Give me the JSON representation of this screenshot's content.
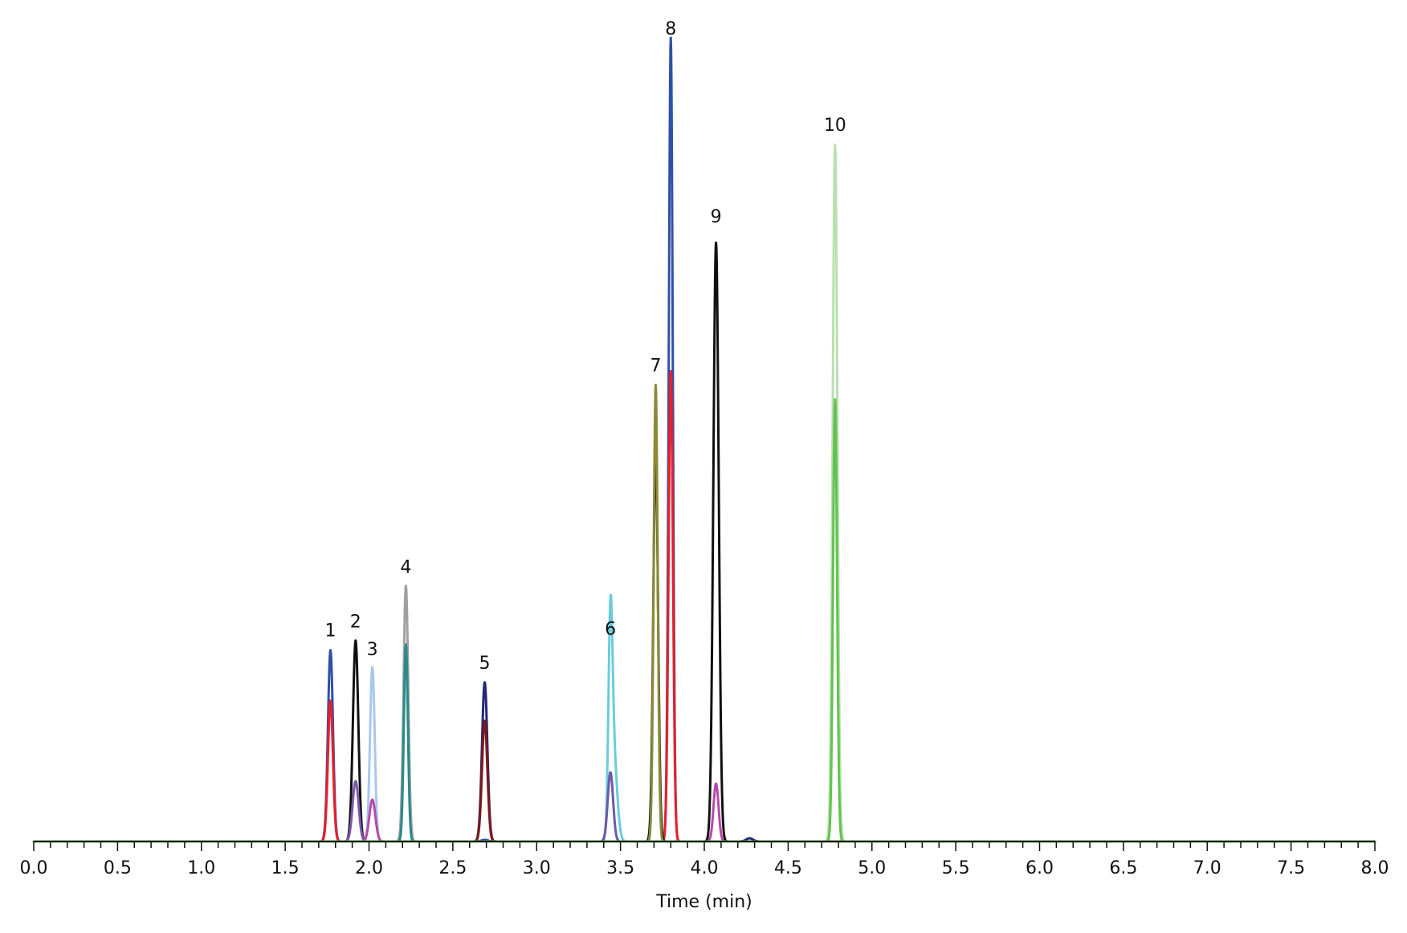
{
  "chart_data": {
    "type": "line",
    "title": "",
    "xlabel": "Time (min)",
    "ylabel": "",
    "xlim": [
      0,
      8
    ],
    "ylim": [
      0,
      100
    ],
    "grid": false,
    "x_ticks": [
      "0.0",
      "0.5",
      "1.0",
      "1.5",
      "2.0",
      "2.5",
      "3.0",
      "3.5",
      "4.0",
      "4.5",
      "5.0",
      "5.5",
      "6.0",
      "6.5",
      "7.0",
      "7.5",
      "8.0"
    ],
    "annotations": [
      {
        "label": "1",
        "x": 1.77,
        "y": 25.1
      },
      {
        "label": "2",
        "x": 1.92,
        "y": 26.2
      },
      {
        "label": "3",
        "x": 2.02,
        "y": 22.8
      },
      {
        "label": "4",
        "x": 2.22,
        "y": 33.0
      },
      {
        "label": "5",
        "x": 2.69,
        "y": 21.1
      },
      {
        "label": "6",
        "x": 3.44,
        "y": 25.3
      },
      {
        "label": "7",
        "x": 3.71,
        "y": 58.1
      },
      {
        "label": "8",
        "x": 3.8,
        "y": 100.0
      },
      {
        "label": "9",
        "x": 4.07,
        "y": 76.6
      },
      {
        "label": "10",
        "x": 4.78,
        "y": 88.0
      }
    ],
    "series": [
      {
        "color": "#3050a8",
        "peaks": [
          {
            "x": 1.77,
            "height": 23.8,
            "width": 0.015
          },
          {
            "x": 3.8,
            "height": 100.0,
            "width": 0.012
          },
          {
            "x": 2.69,
            "height": 0.2,
            "width": 0.02
          }
        ]
      },
      {
        "color": "#e8202a",
        "peaks": [
          {
            "x": 1.77,
            "height": 17.5,
            "width": 0.015
          },
          {
            "x": 3.8,
            "height": 58.5,
            "width": 0.013
          }
        ]
      },
      {
        "color": "#111111",
        "peaks": [
          {
            "x": 1.92,
            "height": 25.0,
            "width": 0.016
          },
          {
            "x": 3.71,
            "height": 48.8,
            "width": 0.014
          },
          {
            "x": 4.07,
            "height": 74.5,
            "width": 0.016
          }
        ]
      },
      {
        "color": "#7a5aa8",
        "peaks": [
          {
            "x": 1.92,
            "height": 7.5,
            "width": 0.018
          }
        ]
      },
      {
        "color": "#a8c8ec",
        "peaks": [
          {
            "x": 2.02,
            "height": 21.7,
            "width": 0.014
          }
        ]
      },
      {
        "color": "#b84aa8",
        "peaks": [
          {
            "x": 2.02,
            "height": 5.2,
            "width": 0.018
          },
          {
            "x": 4.07,
            "height": 7.2,
            "width": 0.015
          }
        ]
      },
      {
        "color": "#a0a0a0",
        "peaks": [
          {
            "x": 2.22,
            "height": 31.8,
            "width": 0.014
          }
        ]
      },
      {
        "color": "#2a8a8a",
        "peaks": [
          {
            "x": 2.22,
            "height": 24.5,
            "width": 0.012
          }
        ]
      },
      {
        "color": "#222877",
        "peaks": [
          {
            "x": 2.69,
            "height": 19.8,
            "width": 0.016
          },
          {
            "x": 4.27,
            "height": 0.4,
            "width": 0.02
          }
        ]
      },
      {
        "color": "#7a1a1a",
        "peaks": [
          {
            "x": 2.69,
            "height": 15.0,
            "width": 0.016
          }
        ]
      },
      {
        "color": "#6accdc",
        "peaks": [
          {
            "x": 3.44,
            "height": 24.0,
            "width": 0.012
          },
          {
            "x": 3.46,
            "height": 10.5,
            "width": 0.02
          }
        ]
      },
      {
        "color": "#6a5aa8",
        "peaks": [
          {
            "x": 3.44,
            "height": 8.6,
            "width": 0.016
          }
        ]
      },
      {
        "color": "#8a8a38",
        "peaks": [
          {
            "x": 3.71,
            "height": 56.8,
            "width": 0.012
          }
        ]
      },
      {
        "color": "#b8e0b0",
        "peaks": [
          {
            "x": 4.78,
            "height": 86.7,
            "width": 0.014
          }
        ]
      },
      {
        "color": "#62c250",
        "peaks": [
          {
            "x": 4.78,
            "height": 55.0,
            "width": 0.012
          }
        ]
      }
    ]
  }
}
